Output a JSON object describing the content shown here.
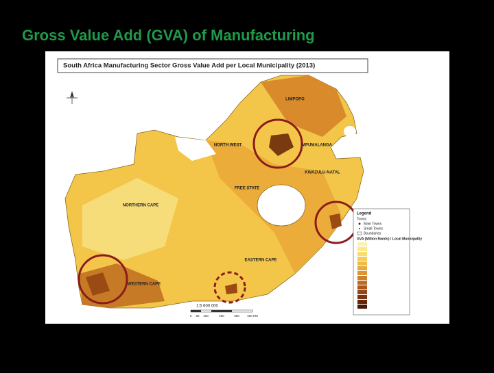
{
  "slide": {
    "title": "Gross Value Add (GVA) of Manufacturing"
  },
  "map": {
    "title": "South Africa Manufacturing Sector Gross Value Add per Local Municipality (2013)",
    "regions": [
      "LIMPOPO",
      "MPUMALANGA",
      "NORTH WEST",
      "FREE STATE",
      "KWAZULU-NATAL",
      "NORTHERN CAPE",
      "EASTERN CAPE",
      "WESTERN CAPE"
    ],
    "legend": {
      "title": "Legend",
      "items": [
        "Towns",
        "Main Towns",
        "Small Towns",
        "Boundaries",
        "GVA (Million Rands) / Local Municipality"
      ]
    },
    "scale": {
      "ratio": "1:5 600 000",
      "ticks": [
        "0",
        "50",
        "100",
        "200",
        "300",
        "400 KM"
      ]
    }
  }
}
